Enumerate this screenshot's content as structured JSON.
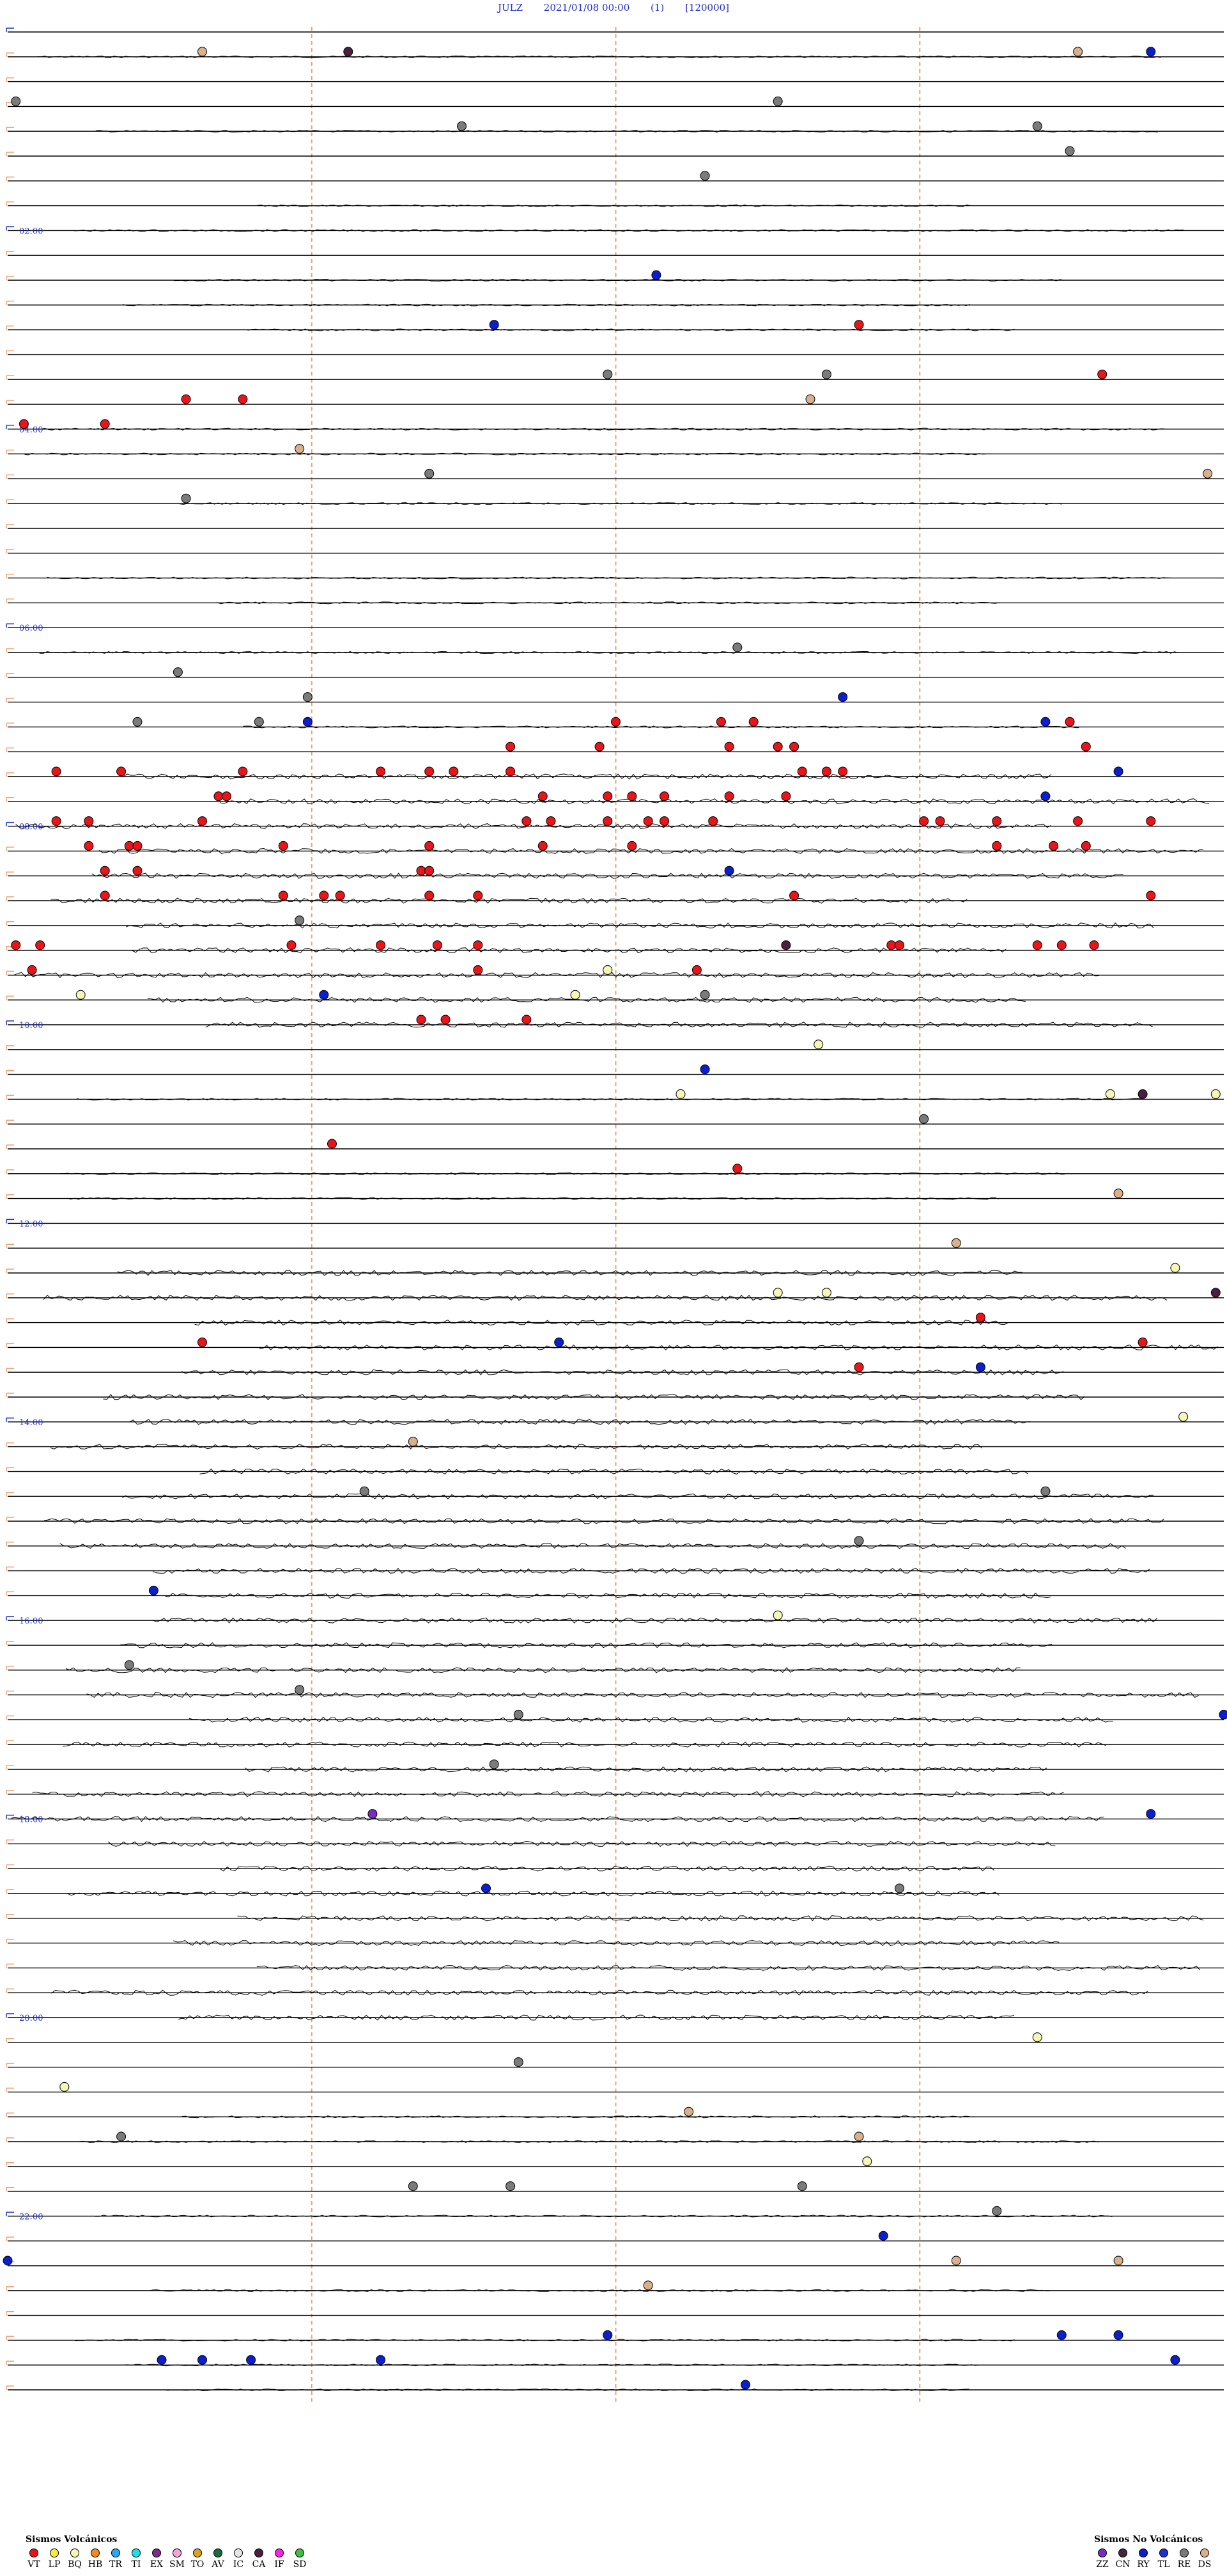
{
  "header": {
    "station": "JULZ",
    "datetime": "2021/01/08 00:00",
    "channel": "(1)",
    "scale": "[120000]"
  },
  "chart_data": {
    "type": "scatter",
    "description_rows": 96,
    "minutes_per_row": 15,
    "row_hour_labels": [
      "02:00",
      "04:00",
      "06:00",
      "08:00",
      "10:00",
      "12:00",
      "14:00",
      "16:00",
      "18:00",
      "20:00",
      "22:00"
    ],
    "hour_label_rows": [
      8,
      16,
      24,
      32,
      40,
      48,
      56,
      64,
      72,
      80,
      88
    ],
    "event_colors": {
      "VT": "#e8151b",
      "LP": "#f2ef3b",
      "BQ": "#f4f7b5",
      "HB": "#f08a24",
      "TR": "#2aa6f2",
      "TI": "#19e3e8",
      "EX": "#7a2c8e",
      "SM": "#f2a6d8",
      "TO": "#d9a321",
      "AV": "#1b6b3a",
      "IC": "#e6e6e6",
      "CA": "#4a1f3f",
      "IF": "#ff22e6",
      "SD": "#3fbf3f",
      "ZZ": "#7a2cc2",
      "CN": "#43283a",
      "RY": "#0b1fcf",
      "TL": "#1f2fd0",
      "RE": "#7b7b7b",
      "DS": "#d8b08c"
    },
    "events": [
      {
        "row": 1,
        "minute": 2.4,
        "type": "DS"
      },
      {
        "row": 1,
        "minute": 4.2,
        "type": "CA"
      },
      {
        "row": 1,
        "minute": 14.1,
        "type": "RY"
      },
      {
        "row": 1,
        "minute": 13.2,
        "type": "DS"
      },
      {
        "row": 3,
        "minute": 0.1,
        "type": "RE"
      },
      {
        "row": 3,
        "minute": 9.5,
        "type": "RE"
      },
      {
        "row": 4,
        "minute": 5.6,
        "type": "RE"
      },
      {
        "row": 4,
        "minute": 12.7,
        "type": "RE"
      },
      {
        "row": 5,
        "minute": 13.1,
        "type": "RE"
      },
      {
        "row": 6,
        "minute": 8.6,
        "type": "RE"
      },
      {
        "row": 10,
        "minute": 8,
        "type": "RY"
      },
      {
        "row": 12,
        "minute": 6,
        "type": "RY"
      },
      {
        "row": 12,
        "minute": 10.5,
        "type": "VT"
      },
      {
        "row": 14,
        "minute": 7.4,
        "type": "RE"
      },
      {
        "row": 14,
        "minute": 10.1,
        "type": "RE"
      },
      {
        "row": 14,
        "minute": 13.5,
        "type": "VT"
      },
      {
        "row": 15,
        "minute": 2.2,
        "type": "VT"
      },
      {
        "row": 15,
        "minute": 9.9,
        "type": "DS"
      },
      {
        "row": 15,
        "minute": 2.9,
        "type": "VT"
      },
      {
        "row": 16,
        "minute": 0.2,
        "type": "VT"
      },
      {
        "row": 16,
        "minute": 1.2,
        "type": "VT"
      },
      {
        "row": 17,
        "minute": 3.6,
        "type": "DS"
      },
      {
        "row": 18,
        "minute": 5.2,
        "type": "RE"
      },
      {
        "row": 18,
        "minute": 14.8,
        "type": "DS"
      },
      {
        "row": 19,
        "minute": 2.2,
        "type": "RE"
      },
      {
        "row": 25,
        "minute": 9,
        "type": "RE"
      },
      {
        "row": 26,
        "minute": 2.1,
        "type": "RE"
      },
      {
        "row": 27,
        "minute": 3.7,
        "type": "RE"
      },
      {
        "row": 27,
        "minute": 10.3,
        "type": "RY"
      },
      {
        "row": 28,
        "minute": 1.6,
        "type": "RE"
      },
      {
        "row": 28,
        "minute": 3.1,
        "type": "RE"
      },
      {
        "row": 28,
        "minute": 3.7,
        "type": "RY"
      },
      {
        "row": 28,
        "minute": 7.5,
        "type": "VT"
      },
      {
        "row": 28,
        "minute": 8.8,
        "type": "VT"
      },
      {
        "row": 28,
        "minute": 9.2,
        "type": "VT"
      },
      {
        "row": 28,
        "minute": 12.8,
        "type": "RY"
      },
      {
        "row": 28,
        "minute": 13.1,
        "type": "VT"
      },
      {
        "row": 29,
        "minute": 8.9,
        "type": "VT"
      },
      {
        "row": 29,
        "minute": 9.5,
        "type": "VT"
      },
      {
        "row": 29,
        "minute": 13.3,
        "type": "VT"
      },
      {
        "row": 29,
        "minute": 9.7,
        "type": "VT"
      },
      {
        "row": 29,
        "minute": 6.2,
        "type": "VT"
      },
      {
        "row": 29,
        "minute": 7.3,
        "type": "VT"
      },
      {
        "row": 30,
        "minute": 0.6,
        "type": "VT"
      },
      {
        "row": 30,
        "minute": 1.4,
        "type": "VT"
      },
      {
        "row": 30,
        "minute": 2.9,
        "type": "VT"
      },
      {
        "row": 30,
        "minute": 4.6,
        "type": "VT"
      },
      {
        "row": 30,
        "minute": 5.2,
        "type": "VT"
      },
      {
        "row": 30,
        "minute": 5.5,
        "type": "VT"
      },
      {
        "row": 30,
        "minute": 6.2,
        "type": "VT"
      },
      {
        "row": 30,
        "minute": 9.8,
        "type": "VT"
      },
      {
        "row": 30,
        "minute": 10.1,
        "type": "VT"
      },
      {
        "row": 30,
        "minute": 10.3,
        "type": "VT"
      },
      {
        "row": 30,
        "minute": 13.7,
        "type": "RY"
      },
      {
        "row": 31,
        "minute": 2.6,
        "type": "VT"
      },
      {
        "row": 31,
        "minute": 2.7,
        "type": "VT"
      },
      {
        "row": 31,
        "minute": 6.6,
        "type": "VT"
      },
      {
        "row": 31,
        "minute": 7.4,
        "type": "VT"
      },
      {
        "row": 31,
        "minute": 7.7,
        "type": "VT"
      },
      {
        "row": 31,
        "minute": 8.1,
        "type": "VT"
      },
      {
        "row": 31,
        "minute": 8.9,
        "type": "VT"
      },
      {
        "row": 31,
        "minute": 9.6,
        "type": "VT"
      },
      {
        "row": 31,
        "minute": 12.8,
        "type": "RY"
      },
      {
        "row": 32,
        "minute": 0.6,
        "type": "VT"
      },
      {
        "row": 32,
        "minute": 1.0,
        "type": "VT"
      },
      {
        "row": 32,
        "minute": 2.4,
        "type": "VT"
      },
      {
        "row": 32,
        "minute": 6.4,
        "type": "VT"
      },
      {
        "row": 32,
        "minute": 6.7,
        "type": "VT"
      },
      {
        "row": 32,
        "minute": 7.4,
        "type": "VT"
      },
      {
        "row": 32,
        "minute": 7.9,
        "type": "VT"
      },
      {
        "row": 32,
        "minute": 8.1,
        "type": "VT"
      },
      {
        "row": 32,
        "minute": 8.7,
        "type": "VT"
      },
      {
        "row": 32,
        "minute": 11.3,
        "type": "VT"
      },
      {
        "row": 32,
        "minute": 11.5,
        "type": "VT"
      },
      {
        "row": 32,
        "minute": 12.2,
        "type": "VT"
      },
      {
        "row": 32,
        "minute": 13.2,
        "type": "VT"
      },
      {
        "row": 32,
        "minute": 14.1,
        "type": "VT"
      },
      {
        "row": 33,
        "minute": 1.0,
        "type": "VT"
      },
      {
        "row": 33,
        "minute": 1.5,
        "type": "VT"
      },
      {
        "row": 33,
        "minute": 1.6,
        "type": "VT"
      },
      {
        "row": 33,
        "minute": 3.4,
        "type": "VT"
      },
      {
        "row": 33,
        "minute": 5.2,
        "type": "VT"
      },
      {
        "row": 33,
        "minute": 6.6,
        "type": "VT"
      },
      {
        "row": 33,
        "minute": 7.7,
        "type": "VT"
      },
      {
        "row": 33,
        "minute": 12.2,
        "type": "VT"
      },
      {
        "row": 33,
        "minute": 12.9,
        "type": "VT"
      },
      {
        "row": 33,
        "minute": 13.3,
        "type": "VT"
      },
      {
        "row": 34,
        "minute": 1.6,
        "type": "VT"
      },
      {
        "row": 34,
        "minute": 5.1,
        "type": "VT"
      },
      {
        "row": 34,
        "minute": 5.2,
        "type": "VT"
      },
      {
        "row": 34,
        "minute": 8.9,
        "type": "RY"
      },
      {
        "row": 34,
        "minute": 1.2,
        "type": "VT"
      },
      {
        "row": 35,
        "minute": 1.2,
        "type": "VT"
      },
      {
        "row": 35,
        "minute": 3.4,
        "type": "VT"
      },
      {
        "row": 35,
        "minute": 3.9,
        "type": "VT"
      },
      {
        "row": 35,
        "minute": 4.1,
        "type": "VT"
      },
      {
        "row": 35,
        "minute": 5.2,
        "type": "VT"
      },
      {
        "row": 35,
        "minute": 5.8,
        "type": "VT"
      },
      {
        "row": 35,
        "minute": 9.7,
        "type": "VT"
      },
      {
        "row": 35,
        "minute": 14.1,
        "type": "VT"
      },
      {
        "row": 36,
        "minute": 3.6,
        "type": "RE"
      },
      {
        "row": 37,
        "minute": 0.1,
        "type": "VT"
      },
      {
        "row": 37,
        "minute": 0.4,
        "type": "VT"
      },
      {
        "row": 37,
        "minute": 3.5,
        "type": "VT"
      },
      {
        "row": 37,
        "minute": 4.6,
        "type": "VT"
      },
      {
        "row": 37,
        "minute": 5.3,
        "type": "VT"
      },
      {
        "row": 37,
        "minute": 5.8,
        "type": "VT"
      },
      {
        "row": 37,
        "minute": 9.6,
        "type": "CA"
      },
      {
        "row": 37,
        "minute": 10.9,
        "type": "VT"
      },
      {
        "row": 37,
        "minute": 11.0,
        "type": "VT"
      },
      {
        "row": 37,
        "minute": 12.7,
        "type": "VT"
      },
      {
        "row": 37,
        "minute": 13.0,
        "type": "VT"
      },
      {
        "row": 37,
        "minute": 13.4,
        "type": "VT"
      },
      {
        "row": 38,
        "minute": 0.3,
        "type": "VT"
      },
      {
        "row": 38,
        "minute": 8.5,
        "type": "VT"
      },
      {
        "row": 38,
        "minute": 5.8,
        "type": "VT"
      },
      {
        "row": 38,
        "minute": 7.4,
        "type": "BQ"
      },
      {
        "row": 39,
        "minute": 3.9,
        "type": "RY"
      },
      {
        "row": 39,
        "minute": 0.9,
        "type": "BQ"
      },
      {
        "row": 39,
        "minute": 7.0,
        "type": "BQ"
      },
      {
        "row": 39,
        "minute": 8.6,
        "type": "RE"
      },
      {
        "row": 40,
        "minute": 5.1,
        "type": "VT"
      },
      {
        "row": 40,
        "minute": 5.4,
        "type": "VT"
      },
      {
        "row": 40,
        "minute": 6.4,
        "type": "VT"
      },
      {
        "row": 41,
        "minute": 10.0,
        "type": "BQ"
      },
      {
        "row": 42,
        "minute": 8.6,
        "type": "RY"
      },
      {
        "row": 43,
        "minute": 8.3,
        "type": "BQ"
      },
      {
        "row": 43,
        "minute": 13.6,
        "type": "BQ"
      },
      {
        "row": 43,
        "minute": 14.9,
        "type": "BQ"
      },
      {
        "row": 43,
        "minute": 14.0,
        "type": "CA"
      },
      {
        "row": 44,
        "minute": 11.3,
        "type": "RE"
      },
      {
        "row": 45,
        "minute": 4.0,
        "type": "VT"
      },
      {
        "row": 46,
        "minute": 9.0,
        "type": "VT"
      },
      {
        "row": 47,
        "minute": 13.7,
        "type": "DS"
      },
      {
        "row": 49,
        "minute": 11.7,
        "type": "DS"
      },
      {
        "row": 50,
        "minute": 14.4,
        "type": "BQ"
      },
      {
        "row": 51,
        "minute": 9.5,
        "type": "BQ"
      },
      {
        "row": 51,
        "minute": 10.1,
        "type": "BQ"
      },
      {
        "row": 51,
        "minute": 14.9,
        "type": "CA"
      },
      {
        "row": 52,
        "minute": 12.0,
        "type": "VT"
      },
      {
        "row": 53,
        "minute": 14.0,
        "type": "VT"
      },
      {
        "row": 53,
        "minute": 2.4,
        "type": "VT"
      },
      {
        "row": 53,
        "minute": 6.8,
        "type": "RY"
      },
      {
        "row": 54,
        "minute": 10.5,
        "type": "VT"
      },
      {
        "row": 54,
        "minute": 12.0,
        "type": "RY"
      },
      {
        "row": 56,
        "minute": 14.5,
        "type": "BQ"
      },
      {
        "row": 57,
        "minute": 5.0,
        "type": "DS"
      },
      {
        "row": 59,
        "minute": 4.4,
        "type": "RE"
      },
      {
        "row": 59,
        "minute": 12.8,
        "type": "RE"
      },
      {
        "row": 61,
        "minute": 10.5,
        "type": "RE"
      },
      {
        "row": 63,
        "minute": 1.8,
        "type": "RY"
      },
      {
        "row": 64,
        "minute": 9.5,
        "type": "BQ"
      },
      {
        "row": 66,
        "minute": 1.5,
        "type": "RE"
      },
      {
        "row": 67,
        "minute": 3.6,
        "type": "RE"
      },
      {
        "row": 68,
        "minute": 6.3,
        "type": "RE"
      },
      {
        "row": 68,
        "minute": 15.0,
        "type": "RY"
      },
      {
        "row": 70,
        "minute": 6.0,
        "type": "RE"
      },
      {
        "row": 72,
        "minute": 4.5,
        "type": "ZZ"
      },
      {
        "row": 72,
        "minute": 14.1,
        "type": "RY"
      },
      {
        "row": 75,
        "minute": 5.9,
        "type": "RY"
      },
      {
        "row": 75,
        "minute": 11.0,
        "type": "RE"
      },
      {
        "row": 81,
        "minute": 12.7,
        "type": "BQ"
      },
      {
        "row": 82,
        "minute": 6.3,
        "type": "RE"
      },
      {
        "row": 83,
        "minute": 0.7,
        "type": "BQ"
      },
      {
        "row": 84,
        "minute": 8.4,
        "type": "DS"
      },
      {
        "row": 85,
        "minute": 1.4,
        "type": "RE"
      },
      {
        "row": 85,
        "minute": 10.5,
        "type": "DS"
      },
      {
        "row": 86,
        "minute": 10.6,
        "type": "BQ"
      },
      {
        "row": 87,
        "minute": 6.2,
        "type": "RE"
      },
      {
        "row": 87,
        "minute": 9.8,
        "type": "RE"
      },
      {
        "row": 87,
        "minute": 5.0,
        "type": "RE"
      },
      {
        "row": 88,
        "minute": 12.2,
        "type": "RE"
      },
      {
        "row": 89,
        "minute": 10.8,
        "type": "RY"
      },
      {
        "row": 90,
        "minute": 11.7,
        "type": "DS"
      },
      {
        "row": 90,
        "minute": 0.0,
        "type": "RY"
      },
      {
        "row": 90,
        "minute": 13.7,
        "type": "DS"
      },
      {
        "row": 91,
        "minute": 7.9,
        "type": "DS"
      },
      {
        "row": 93,
        "minute": 7.4,
        "type": "RY"
      },
      {
        "row": 93,
        "minute": 13.7,
        "type": "RY"
      },
      {
        "row": 93,
        "minute": 13.0,
        "type": "RY"
      },
      {
        "row": 94,
        "minute": 1.9,
        "type": "RY"
      },
      {
        "row": 94,
        "minute": 3.0,
        "type": "RY"
      },
      {
        "row": 94,
        "minute": 4.6,
        "type": "RY"
      },
      {
        "row": 94,
        "minute": 2.4,
        "type": "RY"
      },
      {
        "row": 94,
        "minute": 14.4,
        "type": "RY"
      },
      {
        "row": 95,
        "minute": 9.1,
        "type": "RY"
      }
    ]
  },
  "legend_volcanic": {
    "title": "Sismos Volcánicos",
    "items": [
      "VT",
      "LP",
      "BQ",
      "HB",
      "TR",
      "TI",
      "EX",
      "SM",
      "TO",
      "AV",
      "IC",
      "CA",
      "IF",
      "SD"
    ]
  },
  "legend_nonvolcanic": {
    "title": "Sismos No Volcánicos",
    "items": [
      "ZZ",
      "CN",
      "RY",
      "TL",
      "RE",
      "DS"
    ]
  }
}
